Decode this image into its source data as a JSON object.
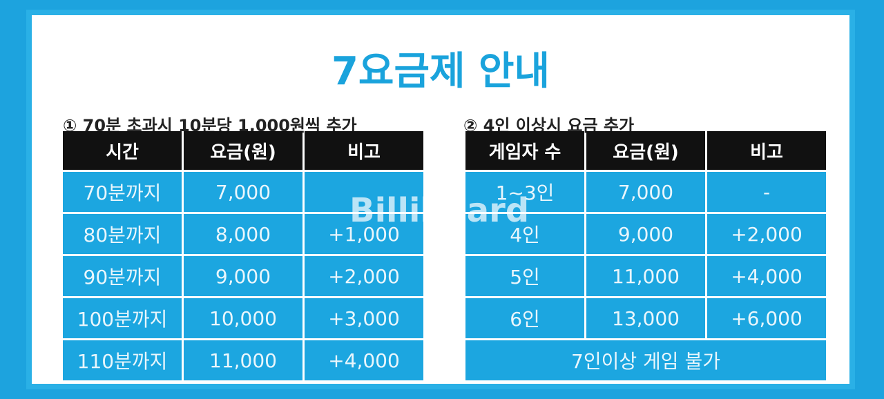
{
  "title": "7요금제 안내",
  "left": {
    "note": "① 70분 초과시 10분당 1,000원씩 추가",
    "headers": [
      "시간",
      "요금(원)",
      "비고"
    ],
    "rows": [
      [
        "70분까지",
        "7,000"
      ],
      [
        "80분까지",
        "8,000",
        "+1,000"
      ],
      [
        "90분까지",
        "9,000",
        "+2,000"
      ],
      [
        "100분까지",
        "10,000",
        "+3,000"
      ],
      [
        "110분까지",
        "11,000",
        "+4,000"
      ]
    ]
  },
  "right": {
    "note": "② 4인 이상시 요금 추가",
    "headers": [
      "게임자 수",
      "요금(원)",
      "비고"
    ],
    "rows": [
      [
        "1~3인",
        "7,000",
        "-"
      ],
      [
        "4인",
        "9,000",
        "+2,000"
      ],
      [
        "5인",
        "11,000",
        "+4,000"
      ],
      [
        "6인",
        "13,000",
        "+6,000"
      ]
    ],
    "footer": "7인이상 게임 불가"
  },
  "watermark": "Billiboard"
}
